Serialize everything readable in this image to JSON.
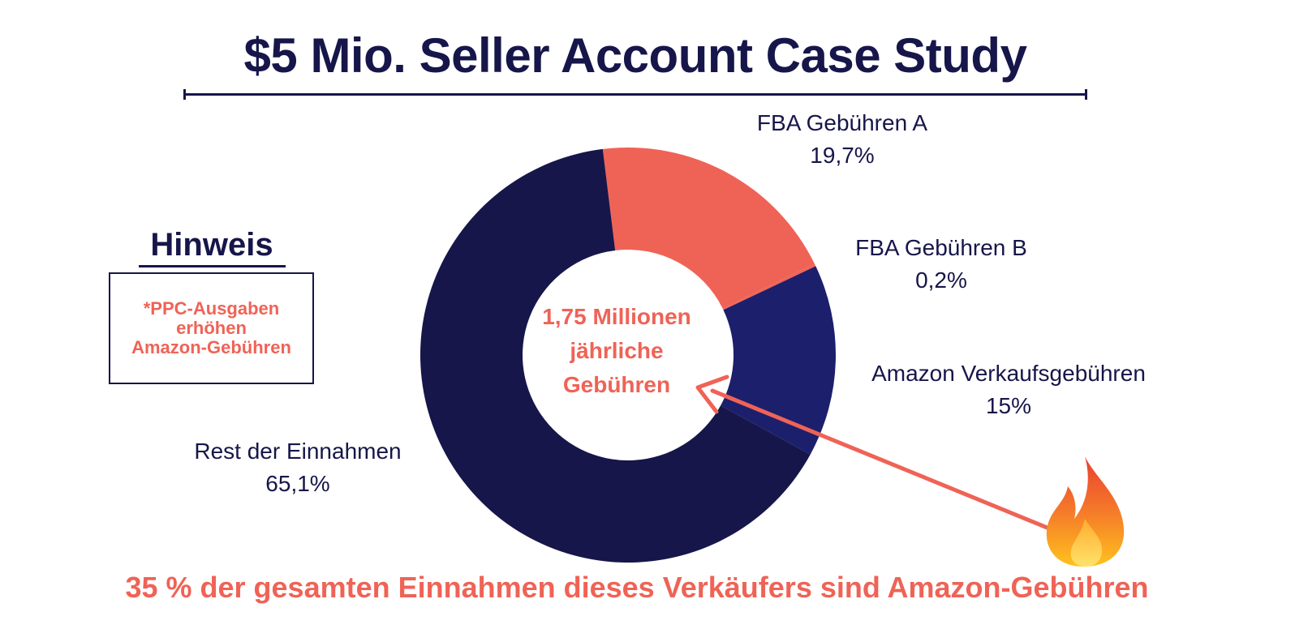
{
  "title": "$5 Mio. Seller Account Case Study",
  "note": {
    "heading": "Hinweis",
    "text": "*PPC-Ausgaben\nerhöhen\nAmazon-Gebühren"
  },
  "center_label": "1,75 Millionen\njährliche\nGebühren",
  "footer": "35 % der gesamten Einnahmen dieses Verkäufers sind Amazon-Gebühren",
  "colors": {
    "navy": "#16164a",
    "coral": "#ef6356",
    "blue": "#1c1f6c"
  },
  "icons": {
    "fire": "fire-icon",
    "arrow": "arrow-icon"
  },
  "chart_data": {
    "type": "pie",
    "subtype": "donut",
    "title": "",
    "slices": [
      {
        "name": "FBA Gebühren A",
        "label": "19,7%",
        "value": 19.7,
        "color": "#ef6356"
      },
      {
        "name": "FBA Gebühren B",
        "label": "0,2%",
        "value": 0.2,
        "color": "#ef6356"
      },
      {
        "name": "Amazon Verkaufsgebühren",
        "label": "15%",
        "value": 15,
        "color": "#1c1f6c"
      },
      {
        "name": "Rest der Einnahmen",
        "label": "65,1%",
        "value": 65.1,
        "color": "#16164a"
      }
    ]
  }
}
